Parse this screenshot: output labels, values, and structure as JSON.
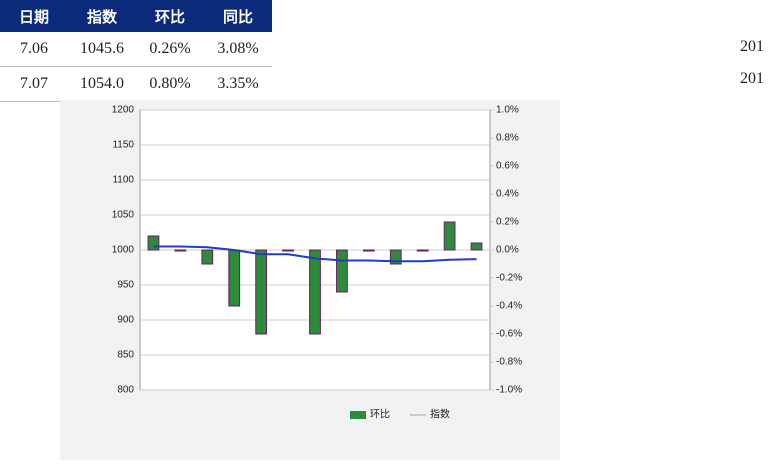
{
  "table": {
    "headers": [
      "日期",
      "指数",
      "环比",
      "同比"
    ],
    "rows": [
      [
        "7.06",
        "1045.6",
        "0.26%",
        "3.08%"
      ],
      [
        "7.07",
        "1054.0",
        "0.80%",
        "3.35%"
      ]
    ],
    "side_cells": [
      "201",
      "201"
    ]
  },
  "chart_data": {
    "type": "bar_line",
    "categories": [
      null,
      null,
      null,
      null,
      null,
      null,
      null,
      null,
      null,
      null,
      null,
      null,
      null
    ],
    "series": [
      {
        "name": "环比",
        "color": "#2e8b3a",
        "axis": "y2",
        "values": [
          0.1,
          0.0,
          -0.1,
          -0.4,
          -0.6,
          0.0,
          -0.6,
          -0.3,
          0.0,
          -0.1,
          0.0,
          0.2,
          0.05
        ]
      },
      {
        "name": "指数",
        "color": "#1f3fbf",
        "values": [
          1005,
          1005,
          1004,
          1000,
          994,
          994,
          988,
          985,
          985,
          984,
          984,
          986,
          987
        ]
      }
    ],
    "ylim": [
      800,
      1200
    ],
    "yticks": [
      800,
      850,
      900,
      950,
      1000,
      1050,
      1100,
      1150,
      1200
    ],
    "y2lim": [
      -1.0,
      1.0
    ],
    "y2ticks": [
      {
        "value": -1.0,
        "label": "-1.0%"
      },
      {
        "value": -0.8,
        "label": "-0.8%"
      },
      {
        "value": -0.6,
        "label": "-0.6%"
      },
      {
        "value": -0.4,
        "label": "-0.4%"
      },
      {
        "value": -0.2,
        "label": "-0.2%"
      },
      {
        "value": 0.0,
        "label": "0.0%"
      },
      {
        "value": 0.2,
        "label": "0.2%"
      },
      {
        "value": 0.4,
        "label": "0.4%"
      },
      {
        "value": 0.6,
        "label": "0.6%"
      },
      {
        "value": 0.8,
        "label": "0.8%"
      },
      {
        "value": 1.0,
        "label": "1.0%"
      }
    ],
    "grid": true
  }
}
